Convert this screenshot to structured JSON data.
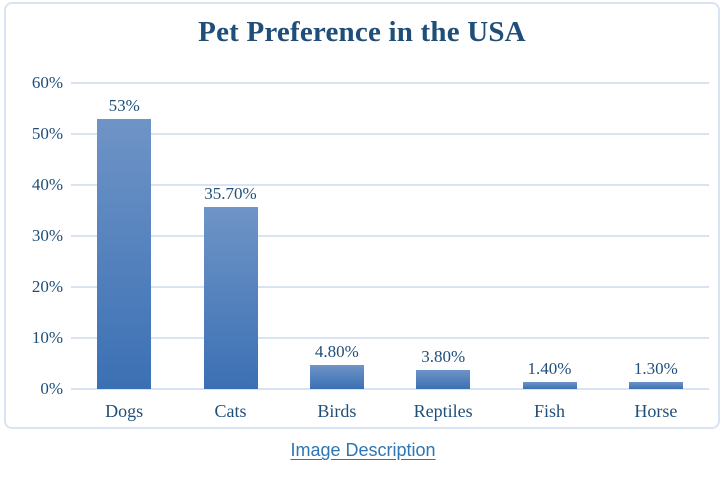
{
  "chart_data": {
    "type": "bar",
    "title": "Pet Preference in the USA",
    "categories": [
      "Dogs",
      "Cats",
      "Birds",
      "Reptiles",
      "Fish",
      "Horse"
    ],
    "values": [
      53,
      35.7,
      4.8,
      3.8,
      1.4,
      1.3
    ],
    "value_labels": [
      "53%",
      "35.70%",
      "4.80%",
      "3.80%",
      "1.40%",
      "1.30%"
    ],
    "xlabel": "",
    "ylabel": "",
    "ylim": [
      0,
      60
    ],
    "ytick_step": 10,
    "ytick_labels": [
      "0%",
      "10%",
      "20%",
      "30%",
      "40%",
      "50%",
      "60%"
    ],
    "grid": true,
    "legend": false
  },
  "link": {
    "label": "Image Description"
  },
  "colors": {
    "text": "#1f4e79",
    "bar_gradient_top": "#6f94c7",
    "bar_gradient_bottom": "#3b70b4",
    "gridline": "#d9e4f2",
    "card_border": "#d9e4f2",
    "link": "#2e75b6"
  }
}
